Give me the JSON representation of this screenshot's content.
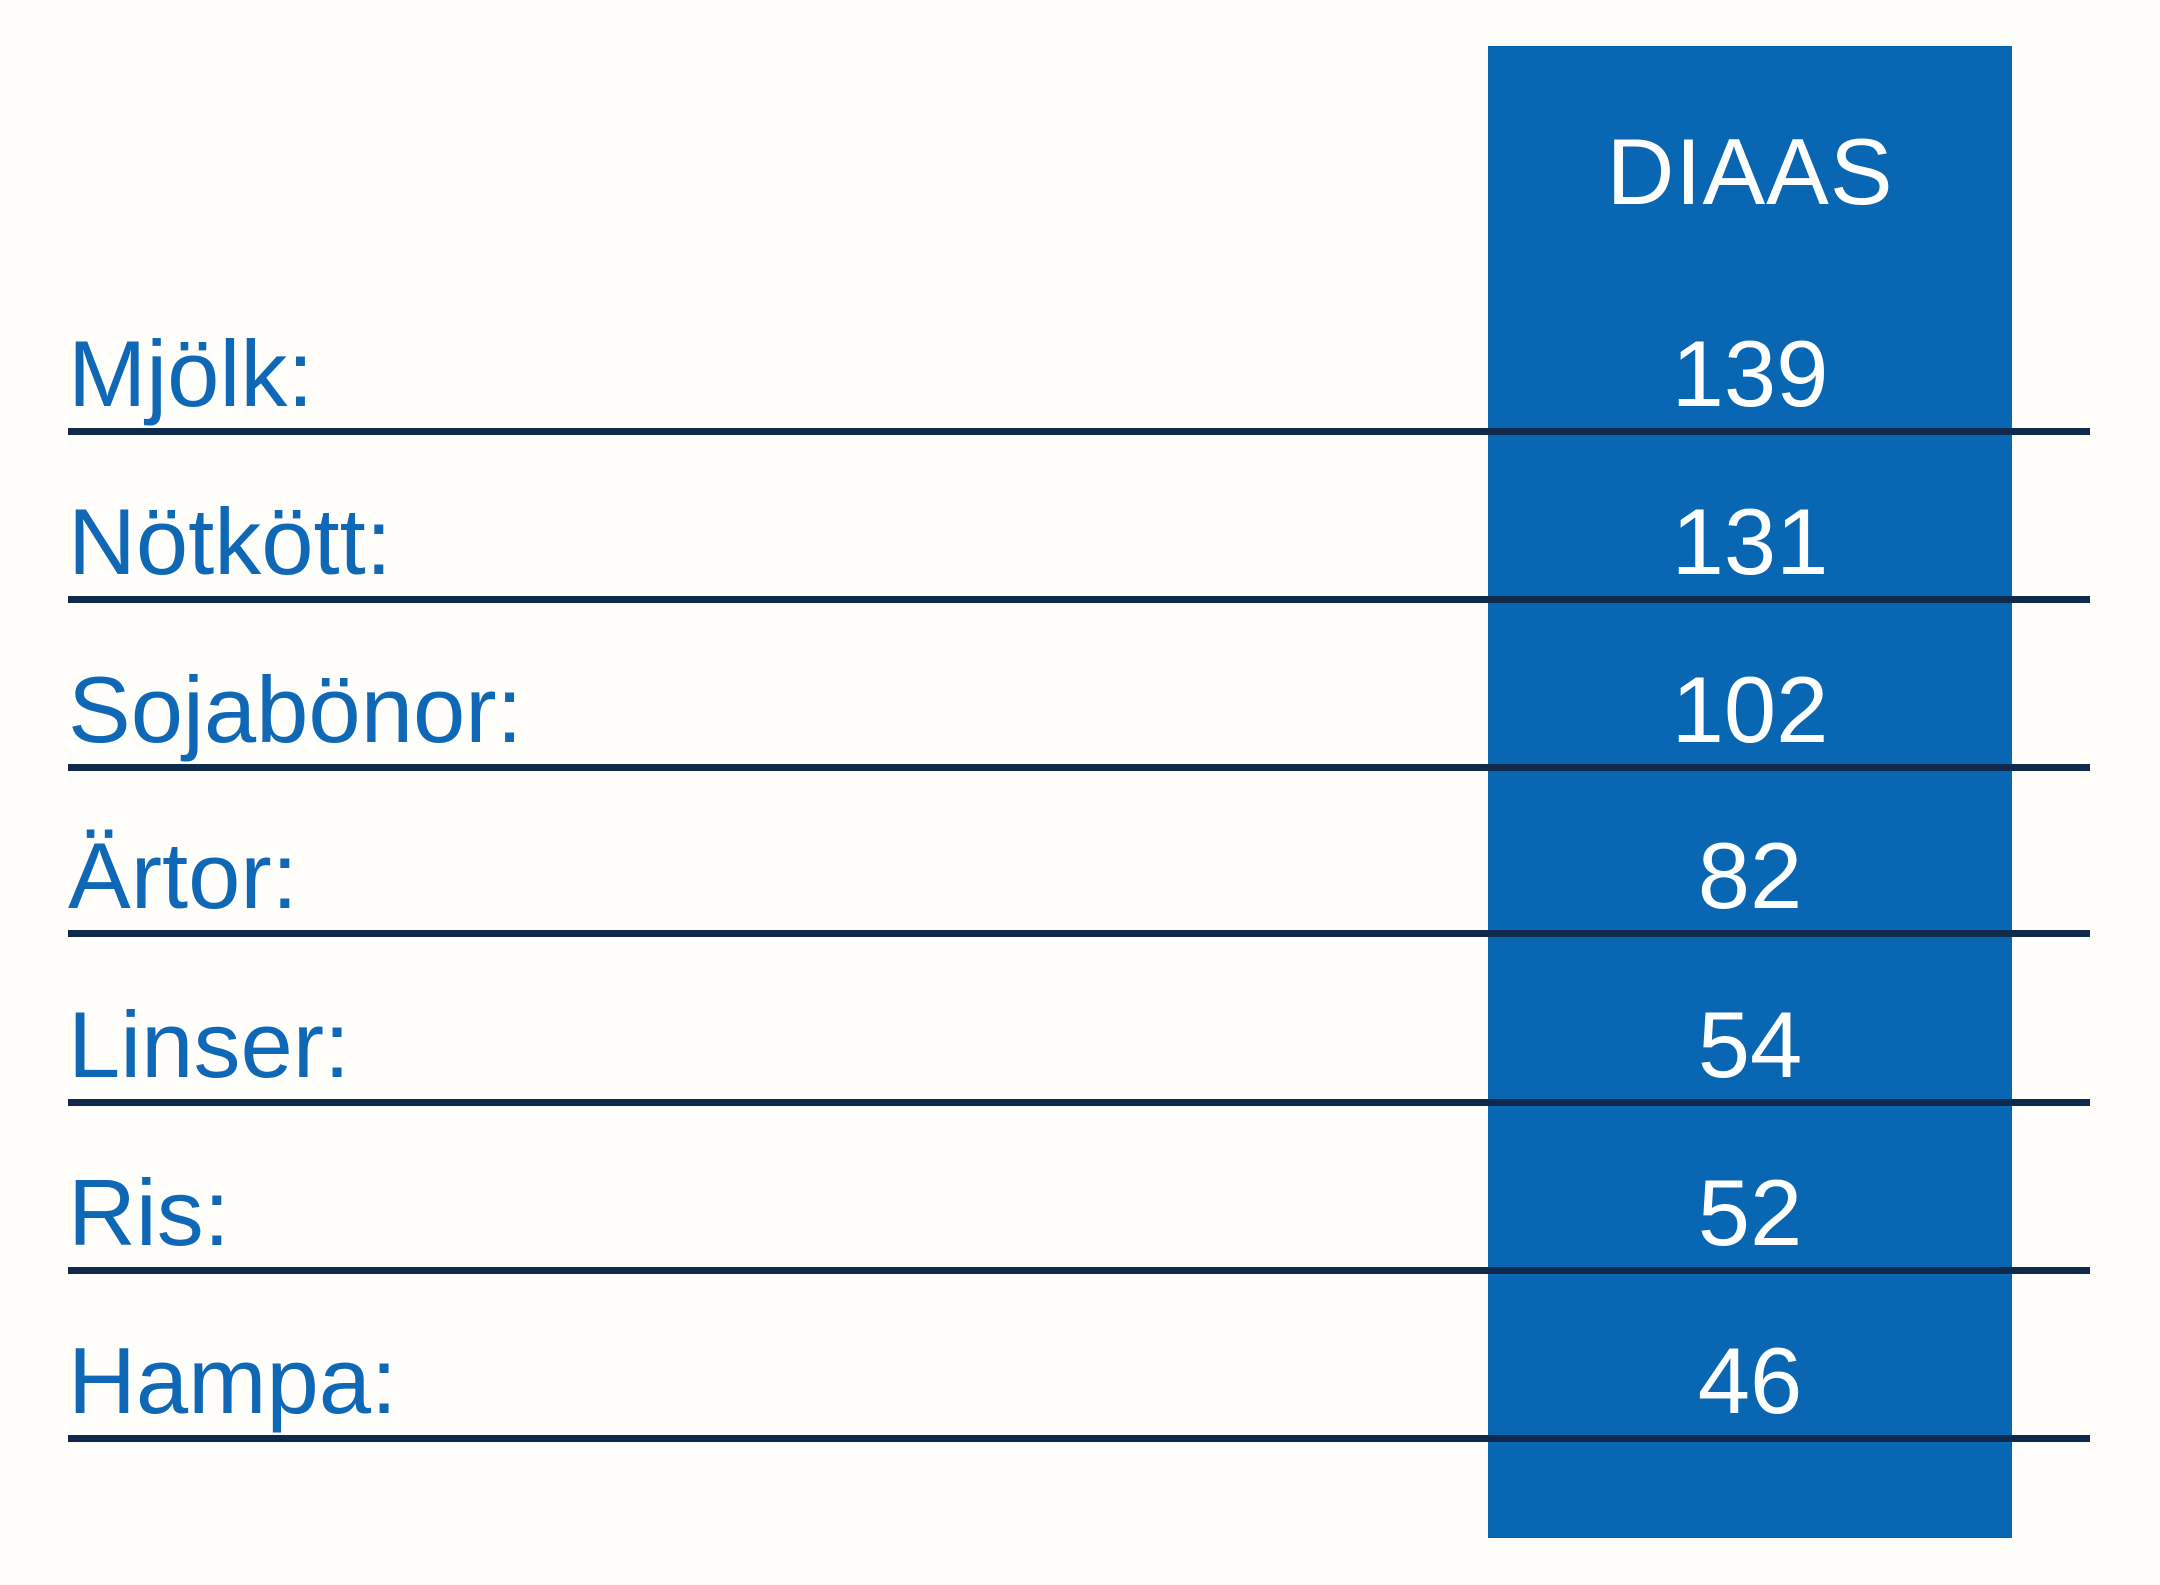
{
  "table": {
    "header": "DIAAS",
    "rows": [
      {
        "label": "Mjölk:",
        "value": "139"
      },
      {
        "label": "Nötkött:",
        "value": "131"
      },
      {
        "label": "Sojabönor:",
        "value": "102"
      },
      {
        "label": "Ärtor:",
        "value": "82"
      },
      {
        "label": "Linser:",
        "value": "54"
      },
      {
        "label": "Ris:",
        "value": "52"
      },
      {
        "label": "Hampa:",
        "value": "46"
      }
    ]
  },
  "colors": {
    "background": "#fffefb",
    "column_blue": "#0866b2",
    "label_blue": "#0f68b6",
    "line_navy": "#102a4d",
    "value_white": "#ffffff"
  },
  "chart_data": {
    "type": "table",
    "title": "",
    "columns": [
      "",
      "DIAAS"
    ],
    "categories": [
      "Mjölk",
      "Nötkött",
      "Sojabönor",
      "Ärtor",
      "Linser",
      "Ris",
      "Hampa"
    ],
    "values": [
      139,
      131,
      102,
      82,
      54,
      52,
      46
    ],
    "layout_hints": {
      "value_column_background": "#0866b2",
      "row_divider_lines": true,
      "header_position": "top-right-column"
    }
  }
}
